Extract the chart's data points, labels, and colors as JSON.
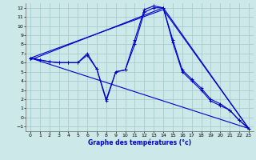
{
  "xlabel": "Graphe des températures (°c)",
  "background_color": "#cce8e8",
  "grid_color": "#aacccc",
  "line_color": "#0000cc",
  "xlim": [
    -0.5,
    23.5
  ],
  "ylim": [
    -1.5,
    12.5
  ],
  "xticks": [
    0,
    1,
    2,
    3,
    4,
    5,
    6,
    7,
    8,
    9,
    10,
    11,
    12,
    13,
    14,
    15,
    16,
    17,
    18,
    19,
    20,
    21,
    22,
    23
  ],
  "yticks": [
    -1,
    0,
    1,
    2,
    3,
    4,
    5,
    6,
    7,
    8,
    9,
    10,
    11,
    12
  ],
  "series1_x": [
    0,
    1,
    2,
    3,
    4,
    5,
    6,
    7,
    8,
    9,
    10,
    11,
    12,
    13,
    14,
    15,
    16,
    17,
    18,
    19,
    20,
    21,
    22,
    23
  ],
  "series1_y": [
    6.5,
    6.3,
    6.1,
    6.0,
    6.0,
    6.0,
    7.0,
    5.3,
    1.8,
    5.0,
    5.2,
    8.5,
    11.8,
    12.2,
    12.0,
    8.5,
    5.2,
    4.2,
    3.2,
    2.0,
    1.5,
    0.8,
    -0.3,
    -1.2
  ],
  "series2_x": [
    0,
    1,
    2,
    3,
    4,
    5,
    6,
    7,
    8,
    9,
    10,
    11,
    12,
    13,
    14,
    15,
    16,
    17,
    18,
    19,
    20,
    21,
    22,
    23
  ],
  "series2_y": [
    6.5,
    6.3,
    6.1,
    6.0,
    6.0,
    6.0,
    6.8,
    5.3,
    2.0,
    5.0,
    5.2,
    8.0,
    11.5,
    12.0,
    12.0,
    8.2,
    5.0,
    4.0,
    3.0,
    1.8,
    1.3,
    0.8,
    -0.3,
    -1.2
  ],
  "trend1_x": [
    0,
    23
  ],
  "trend1_y": [
    6.5,
    -1.2
  ],
  "trend2_x": [
    0,
    14,
    23
  ],
  "trend2_y": [
    6.5,
    11.8,
    -1.2
  ],
  "trend3_x": [
    0,
    14,
    23
  ],
  "trend3_y": [
    6.3,
    12.0,
    -1.2
  ]
}
